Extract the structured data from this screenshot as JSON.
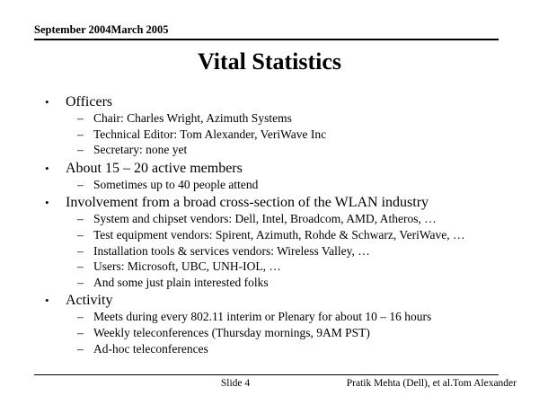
{
  "header": {
    "date_text": "September 2004March 2005"
  },
  "title": "Vital Statistics",
  "content": {
    "bullet_l1": "•",
    "bullet_l2": "–",
    "items": [
      {
        "level": 1,
        "text": "Officers"
      },
      {
        "level": 2,
        "text": "Chair: Charles Wright, Azimuth Systems"
      },
      {
        "level": 2,
        "text": "Technical Editor: Tom Alexander, VeriWave Inc"
      },
      {
        "level": 2,
        "text": "Secretary: none yet"
      },
      {
        "level": 1,
        "text": "About 15 – 20 active members"
      },
      {
        "level": 2,
        "text": "Sometimes up to 40 people attend"
      },
      {
        "level": 1,
        "text": "Involvement from a broad cross-section of the WLAN industry"
      },
      {
        "level": 2,
        "text": "System and chipset vendors: Dell, Intel, Broadcom, AMD, Atheros, …"
      },
      {
        "level": 2,
        "text": "Test equipment vendors: Spirent, Azimuth, Rohde & Schwarz, VeriWave, …"
      },
      {
        "level": 2,
        "text": "Installation tools & services vendors: Wireless Valley, …"
      },
      {
        "level": 2,
        "text": "Users: Microsoft, UBC, UNH-IOL, …"
      },
      {
        "level": 2,
        "text": "And some just plain interested folks"
      },
      {
        "level": 1,
        "text": "Activity"
      },
      {
        "level": 2,
        "text": "Meets during every 802.11 interim or Plenary for about 10 – 16 hours"
      },
      {
        "level": 2,
        "text": "Weekly teleconferences (Thursday mornings, 9AM PST)"
      },
      {
        "level": 2,
        "text": "Ad-hoc teleconferences"
      }
    ]
  },
  "footer": {
    "slide_label": "Slide 4",
    "authors": "Pratik Mehta (Dell), et al.Tom Alexander"
  },
  "colors": {
    "text": "#000000",
    "background": "#ffffff"
  }
}
